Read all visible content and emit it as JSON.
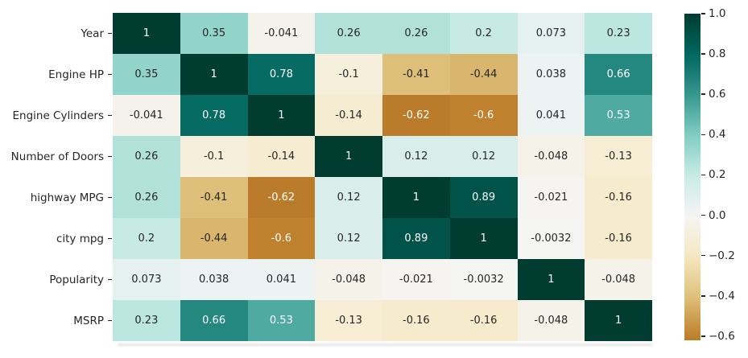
{
  "figure": {
    "background": "#ffffff",
    "text_color": "#262626"
  },
  "chart_data": {
    "type": "heatmap",
    "title": "",
    "xlabel": "",
    "ylabel": "",
    "row_labels": [
      "Year",
      "Engine HP",
      "Engine Cylinders",
      "Number of Doors",
      "highway MPG",
      "city mpg",
      "Popularity",
      "MSRP"
    ],
    "matrix_display": [
      [
        "1",
        "0.35",
        "-0.041",
        "0.26",
        "0.26",
        "0.2",
        "0.073",
        "0.23"
      ],
      [
        "0.35",
        "1",
        "0.78",
        "-0.1",
        "-0.41",
        "-0.44",
        "0.038",
        "0.66"
      ],
      [
        "-0.041",
        "0.78",
        "1",
        "-0.14",
        "-0.62",
        "-0.6",
        "0.041",
        "0.53"
      ],
      [
        "0.26",
        "-0.1",
        "-0.14",
        "1",
        "0.12",
        "0.12",
        "-0.048",
        "-0.13"
      ],
      [
        "0.26",
        "-0.41",
        "-0.62",
        "0.12",
        "1",
        "0.89",
        "-0.021",
        "-0.16"
      ],
      [
        "0.2",
        "-0.44",
        "-0.6",
        "0.12",
        "0.89",
        "1",
        "-0.0032",
        "-0.16"
      ],
      [
        "0.073",
        "0.038",
        "0.041",
        "-0.048",
        "-0.021",
        "-0.0032",
        "1",
        "-0.048"
      ],
      [
        "0.23",
        "0.66",
        "0.53",
        "-0.13",
        "-0.16",
        "-0.16",
        "-0.048",
        "1"
      ]
    ],
    "matrix_values": [
      [
        1,
        0.35,
        -0.041,
        0.26,
        0.26,
        0.2,
        0.073,
        0.23
      ],
      [
        0.35,
        1,
        0.78,
        -0.1,
        -0.41,
        -0.44,
        0.038,
        0.66
      ],
      [
        -0.041,
        0.78,
        1,
        -0.14,
        -0.62,
        -0.6,
        0.041,
        0.53
      ],
      [
        0.26,
        -0.1,
        -0.14,
        1,
        0.12,
        0.12,
        -0.048,
        -0.13
      ],
      [
        0.26,
        -0.41,
        -0.62,
        0.12,
        1,
        0.89,
        -0.021,
        -0.16
      ],
      [
        0.2,
        -0.44,
        -0.6,
        0.12,
        0.89,
        1,
        -0.0032,
        -0.16
      ],
      [
        0.073,
        0.038,
        0.041,
        -0.048,
        -0.021,
        -0.0032,
        1,
        -0.048
      ],
      [
        0.23,
        0.66,
        0.53,
        -0.13,
        -0.16,
        -0.16,
        -0.048,
        1
      ]
    ],
    "vmin": -0.62,
    "vmax": 1.0,
    "center": 0,
    "colormap": {
      "name": "BrBG",
      "anchors": [
        "#543005",
        "#8c510a",
        "#bf812d",
        "#dfc27d",
        "#f6e8c3",
        "#f5f5f5",
        "#c7eae5",
        "#80cdc1",
        "#35978f",
        "#01665e",
        "#003c30"
      ]
    },
    "annotation_colors": {
      "dark": "#262626",
      "light": "#ffffff"
    },
    "colorbar": {
      "position": "right",
      "tick_labels": [
        "1.0",
        "0.8",
        "0.6",
        "0.4",
        "0.2",
        "0.0",
        "−0.2",
        "−0.4",
        "−0.6"
      ],
      "tick_values": [
        1.0,
        0.8,
        0.6,
        0.4,
        0.2,
        0.0,
        -0.2,
        -0.4,
        -0.6
      ]
    },
    "grid": "off",
    "legend": "none"
  }
}
